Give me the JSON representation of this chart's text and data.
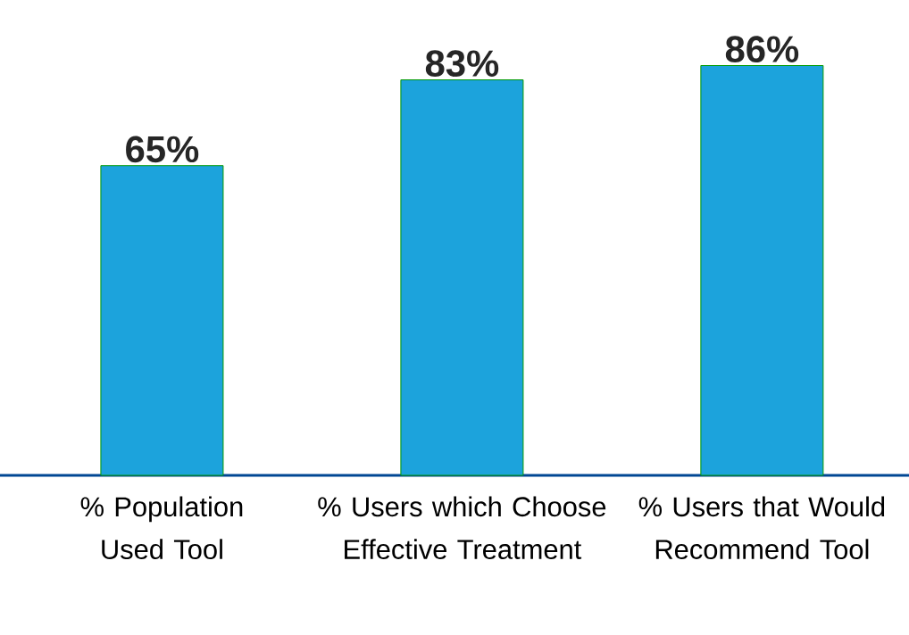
{
  "chart_data": {
    "type": "bar",
    "categories": [
      "% Population Used Tool",
      "% Users which Choose Effective Treatment",
      "% Users that Would Recommend Tool"
    ],
    "values": [
      65,
      83,
      86
    ],
    "value_labels": [
      "65%",
      "83%",
      "86%"
    ],
    "color": "#1ca3dc",
    "tick_labels": "x"
  }
}
